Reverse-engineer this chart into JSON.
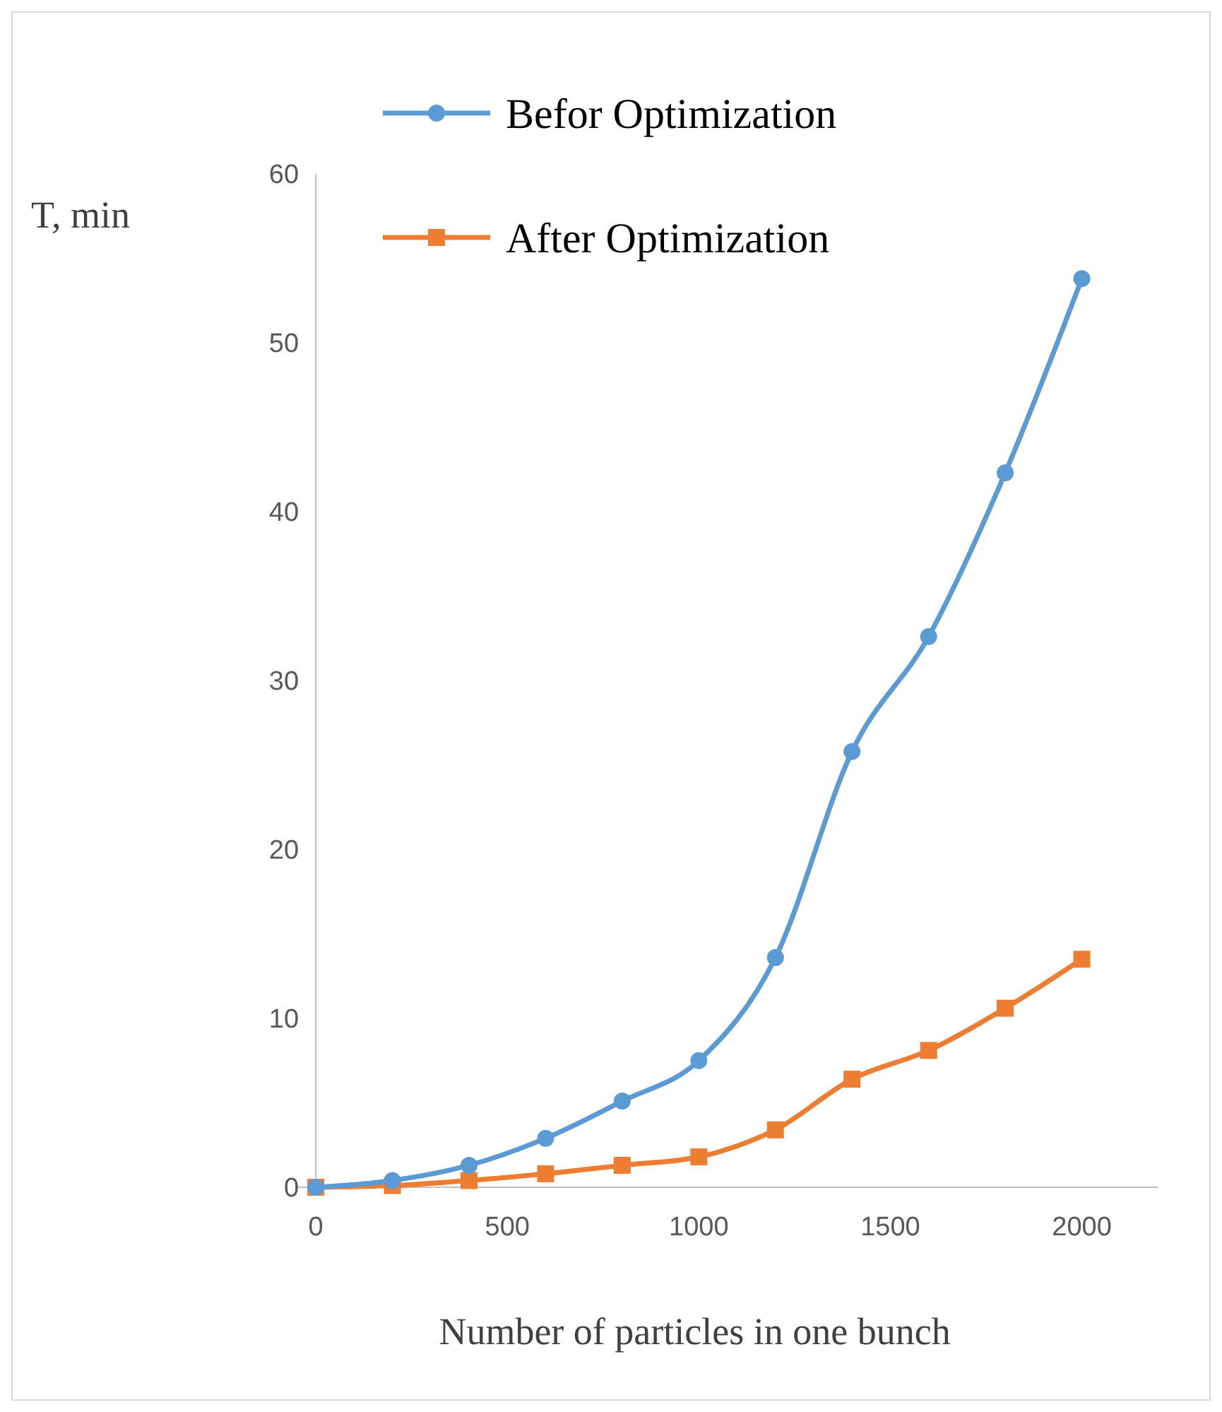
{
  "chart_data": {
    "type": "line",
    "xlabel": "Number of particles in one bunch",
    "ylabel": "T, min",
    "x": [
      0,
      200,
      400,
      600,
      800,
      1000,
      1200,
      1400,
      1600,
      1800,
      2000
    ],
    "series": [
      {
        "name": "Befor Optimization",
        "color": "#5b9bd5",
        "marker": "circle",
        "values": [
          0,
          0.4,
          1.3,
          2.9,
          5.1,
          7.5,
          13.6,
          25.8,
          32.6,
          42.3,
          53.8
        ]
      },
      {
        "name": "After Optimization",
        "color": "#ed7d31",
        "marker": "square",
        "values": [
          0,
          0.1,
          0.4,
          0.8,
          1.3,
          1.8,
          3.4,
          6.4,
          8.1,
          10.6,
          13.5
        ]
      }
    ],
    "xlim": [
      -50,
      2200
    ],
    "xticks": [
      0,
      500,
      1000,
      1500,
      2000
    ],
    "ylim": [
      0,
      60
    ],
    "yticks": [
      0,
      10,
      20,
      30,
      40,
      50,
      60
    ],
    "grid": false,
    "legend": "top"
  }
}
